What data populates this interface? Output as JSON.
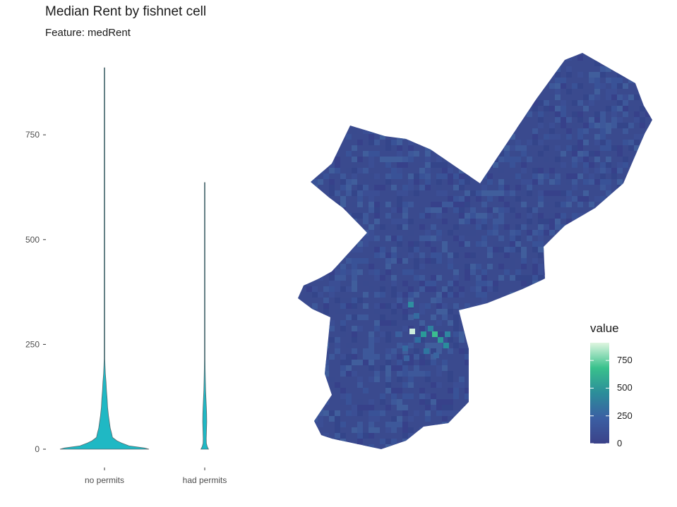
{
  "title": "Median Rent by fishnet cell",
  "subtitle": "Feature: medRent",
  "chart_data": [
    {
      "type": "violin",
      "categories": [
        "no permits",
        "had permits"
      ],
      "ylim": [
        0,
        930
      ],
      "y_ticks": [
        0,
        250,
        500,
        750
      ],
      "xlabel": "",
      "ylabel": "",
      "grid": false,
      "fill_color": "#1fb8c4",
      "series": [
        {
          "category": "no permits",
          "min": 0,
          "max": 910,
          "density_profile": [
            [
              0,
              1.0
            ],
            [
              3,
              0.9
            ],
            [
              8,
              0.55
            ],
            [
              14,
              0.4
            ],
            [
              20,
              0.28
            ],
            [
              28,
              0.18
            ],
            [
              38,
              0.16
            ],
            [
              50,
              0.13
            ],
            [
              65,
              0.11
            ],
            [
              80,
              0.09
            ],
            [
              100,
              0.07
            ],
            [
              120,
              0.06
            ],
            [
              140,
              0.045
            ],
            [
              160,
              0.035
            ],
            [
              180,
              0.02
            ],
            [
              200,
              0.012
            ],
            [
              215,
              0.005
            ],
            [
              250,
              0.003
            ],
            [
              500,
              0.0015
            ],
            [
              910,
              0.0008
            ]
          ]
        },
        {
          "category": "had permits",
          "min": 0,
          "max": 636,
          "density_profile": [
            [
              0,
              0.3
            ],
            [
              6,
              0.2
            ],
            [
              14,
              0.13
            ],
            [
              25,
              0.12
            ],
            [
              45,
              0.14
            ],
            [
              65,
              0.16
            ],
            [
              85,
              0.15
            ],
            [
              100,
              0.13
            ],
            [
              120,
              0.1
            ],
            [
              140,
              0.07
            ],
            [
              165,
              0.05
            ],
            [
              190,
              0.035
            ],
            [
              215,
              0.02
            ],
            [
              240,
              0.01
            ],
            [
              260,
              0.004
            ],
            [
              300,
              0.003
            ],
            [
              570,
              0.0015
            ],
            [
              636,
              0.0008
            ]
          ]
        }
      ]
    },
    {
      "type": "heatmap",
      "description_free": true,
      "legend": {
        "title": "value",
        "ticks": [
          "0",
          "250",
          "500",
          "750"
        ],
        "range": [
          0,
          910
        ],
        "colors": [
          "#3b4289",
          "#3b5fa3",
          "#2c8d9a",
          "#39c18c",
          "#dff6e0"
        ]
      },
      "base_color": "#3a4a8e"
    }
  ]
}
